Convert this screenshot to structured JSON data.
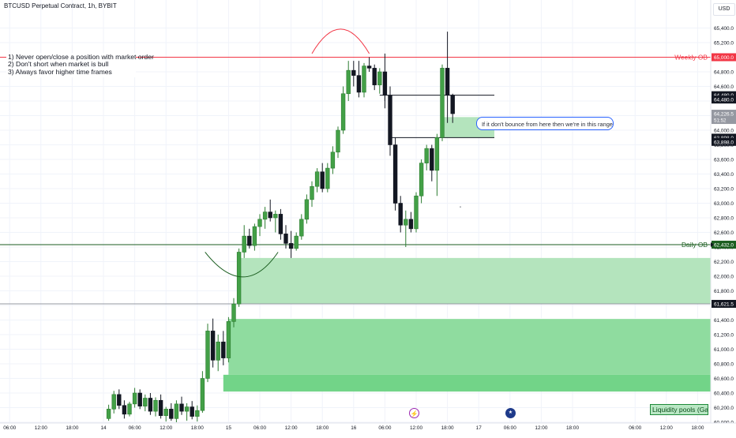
{
  "header": {
    "symbol_title": "BTCUSD Perpetual Contract, 1h, BYBIT",
    "currency": "USD"
  },
  "notes": [
    "1) Never open/close a position with market order",
    "2) Don't short when market is bull",
    "3) Always favor higher time frames"
  ],
  "callout": "If it don't bounce from here then we're in this range",
  "liquidity_label": "Liquidity pools (Gap/OB)",
  "colors": {
    "bull": "#26a69a",
    "bull_body": "#43a047",
    "bear": "#131722",
    "zone": "#4caf50",
    "weekly_line": "#f23645",
    "daily_line": "#1b5e20",
    "grid": "#f0f3fa"
  },
  "chart_data": {
    "type": "candlestick",
    "symbol": "BTCUSD",
    "exchange": "BYBIT",
    "timeframe": "1h",
    "ylim": [
      60000,
      65700
    ],
    "y_ticks": [
      60000,
      60200,
      60400,
      60600,
      60800,
      61000,
      61200,
      61400,
      61600,
      61800,
      62000,
      62200,
      62400,
      62600,
      62800,
      63000,
      63200,
      63400,
      63600,
      63800,
      64000,
      64200,
      64400,
      64600,
      64800,
      65000,
      65200,
      65400
    ],
    "y_tick_labels": [
      "60,000.0",
      "60,200.0",
      "60,400.0",
      "60,600.0",
      "60,800.0",
      "61,000.0",
      "61,200.0",
      "61,400.0",
      "61,600.0",
      "61,800.0",
      "62,000.0",
      "62,200.0",
      "62,400.0",
      "62,600.0",
      "62,800.0",
      "63,000.0",
      "63,200.0",
      "63,400.0",
      "63,600.0",
      "63,800.0",
      "64,000.0",
      "64,200.0",
      "64,400.0",
      "64,600.0",
      "64,800.0",
      "65,000.0",
      "65,200.0",
      "65,400.0"
    ],
    "x_tick_labels": [
      "06:00",
      "12:00",
      "18:00",
      "14",
      "06:00",
      "12:00",
      "18:00",
      "15",
      "06:00",
      "12:00",
      "18:00",
      "16",
      "06:00",
      "12:00",
      "18:00",
      "17",
      "06:00",
      "12:00",
      "18:00",
      "06:00",
      "12:00",
      "18:00"
    ],
    "x_ticks_hours": [
      -18,
      -12,
      -6,
      0,
      6,
      12,
      18,
      24,
      30,
      36,
      42,
      48,
      54,
      60,
      66,
      72,
      78,
      84,
      90,
      102,
      108,
      114
    ],
    "candles": [
      {
        "t": 1,
        "o": 60050,
        "h": 60240,
        "l": 60020,
        "c": 60180
      },
      {
        "t": 2,
        "o": 60180,
        "h": 60430,
        "l": 60120,
        "c": 60380
      },
      {
        "t": 3,
        "o": 60380,
        "h": 60450,
        "l": 60180,
        "c": 60230
      },
      {
        "t": 4,
        "o": 60230,
        "h": 60300,
        "l": 60050,
        "c": 60110
      },
      {
        "t": 5,
        "o": 60110,
        "h": 60280,
        "l": 60080,
        "c": 60250
      },
      {
        "t": 6,
        "o": 60250,
        "h": 60470,
        "l": 60200,
        "c": 60400
      },
      {
        "t": 7,
        "o": 60400,
        "h": 60450,
        "l": 60180,
        "c": 60220
      },
      {
        "t": 8,
        "o": 60220,
        "h": 60380,
        "l": 60150,
        "c": 60330
      },
      {
        "t": 9,
        "o": 60330,
        "h": 60400,
        "l": 60100,
        "c": 60150
      },
      {
        "t": 10,
        "o": 60150,
        "h": 60340,
        "l": 60080,
        "c": 60300
      },
      {
        "t": 11,
        "o": 60300,
        "h": 60380,
        "l": 60050,
        "c": 60090
      },
      {
        "t": 12,
        "o": 60090,
        "h": 60210,
        "l": 60010,
        "c": 60180
      },
      {
        "t": 13,
        "o": 60180,
        "h": 60260,
        "l": 60020,
        "c": 60050
      },
      {
        "t": 14,
        "o": 60050,
        "h": 60300,
        "l": 60000,
        "c": 60250
      },
      {
        "t": 15,
        "o": 60250,
        "h": 60350,
        "l": 60100,
        "c": 60150
      },
      {
        "t": 16,
        "o": 60150,
        "h": 60260,
        "l": 60020,
        "c": 60210
      },
      {
        "t": 17,
        "o": 60210,
        "h": 60290,
        "l": 60040,
        "c": 60080
      },
      {
        "t": 18,
        "o": 60080,
        "h": 60230,
        "l": 60010,
        "c": 60160
      },
      {
        "t": 19,
        "o": 60160,
        "h": 60700,
        "l": 60130,
        "c": 60600
      },
      {
        "t": 20,
        "o": 60600,
        "h": 61350,
        "l": 60550,
        "c": 61250
      },
      {
        "t": 21,
        "o": 61250,
        "h": 61420,
        "l": 60750,
        "c": 60850
      },
      {
        "t": 22,
        "o": 60850,
        "h": 61200,
        "l": 60700,
        "c": 61100
      },
      {
        "t": 23,
        "o": 61100,
        "h": 61250,
        "l": 60780,
        "c": 60880
      },
      {
        "t": 24,
        "o": 60880,
        "h": 61440,
        "l": 60820,
        "c": 61380
      },
      {
        "t": 25,
        "o": 61380,
        "h": 61700,
        "l": 61300,
        "c": 61620
      },
      {
        "t": 26,
        "o": 61620,
        "h": 62380,
        "l": 61580,
        "c": 62330
      },
      {
        "t": 27,
        "o": 62330,
        "h": 62700,
        "l": 62250,
        "c": 62550
      },
      {
        "t": 28,
        "o": 62550,
        "h": 62650,
        "l": 62380,
        "c": 62420
      },
      {
        "t": 29,
        "o": 62420,
        "h": 62720,
        "l": 62350,
        "c": 62680
      },
      {
        "t": 30,
        "o": 62680,
        "h": 62850,
        "l": 62550,
        "c": 62780
      },
      {
        "t": 31,
        "o": 62780,
        "h": 62950,
        "l": 62650,
        "c": 62880
      },
      {
        "t": 32,
        "o": 62880,
        "h": 63050,
        "l": 62750,
        "c": 62800
      },
      {
        "t": 33,
        "o": 62800,
        "h": 62900,
        "l": 62600,
        "c": 62850
      },
      {
        "t": 34,
        "o": 62850,
        "h": 62920,
        "l": 62500,
        "c": 62580
      },
      {
        "t": 35,
        "o": 62580,
        "h": 62700,
        "l": 62380,
        "c": 62450
      },
      {
        "t": 36,
        "o": 62450,
        "h": 62620,
        "l": 62250,
        "c": 62380
      },
      {
        "t": 37,
        "o": 62380,
        "h": 62600,
        "l": 62350,
        "c": 62550
      },
      {
        "t": 38,
        "o": 62550,
        "h": 62850,
        "l": 62500,
        "c": 62780
      },
      {
        "t": 39,
        "o": 62780,
        "h": 63120,
        "l": 62720,
        "c": 63050
      },
      {
        "t": 40,
        "o": 63050,
        "h": 63300,
        "l": 62950,
        "c": 63230
      },
      {
        "t": 41,
        "o": 63230,
        "h": 63480,
        "l": 63150,
        "c": 63430
      },
      {
        "t": 42,
        "o": 63430,
        "h": 63550,
        "l": 63150,
        "c": 63200
      },
      {
        "t": 43,
        "o": 63200,
        "h": 63550,
        "l": 63150,
        "c": 63480
      },
      {
        "t": 44,
        "o": 63480,
        "h": 63780,
        "l": 63400,
        "c": 63700
      },
      {
        "t": 45,
        "o": 63700,
        "h": 64050,
        "l": 63620,
        "c": 64000
      },
      {
        "t": 46,
        "o": 64000,
        "h": 64600,
        "l": 63950,
        "c": 64500
      },
      {
        "t": 47,
        "o": 64500,
        "h": 64950,
        "l": 64400,
        "c": 64820
      },
      {
        "t": 48,
        "o": 64820,
        "h": 64950,
        "l": 64600,
        "c": 64750
      },
      {
        "t": 49,
        "o": 64750,
        "h": 64950,
        "l": 64450,
        "c": 64520
      },
      {
        "t": 50,
        "o": 64520,
        "h": 64920,
        "l": 64450,
        "c": 64880
      },
      {
        "t": 51,
        "o": 64880,
        "h": 65000,
        "l": 64800,
        "c": 64850
      },
      {
        "t": 52,
        "o": 64850,
        "h": 64900,
        "l": 64550,
        "c": 64620
      },
      {
        "t": 53,
        "o": 64620,
        "h": 64850,
        "l": 64500,
        "c": 64800
      },
      {
        "t": 54,
        "o": 64800,
        "h": 65050,
        "l": 64400,
        "c": 64480
      },
      {
        "t": 55,
        "o": 64480,
        "h": 64600,
        "l": 63700,
        "c": 63800
      },
      {
        "t": 56,
        "o": 63800,
        "h": 63900,
        "l": 62900,
        "c": 63000
      },
      {
        "t": 57,
        "o": 63000,
        "h": 63100,
        "l": 62600,
        "c": 62700
      },
      {
        "t": 58,
        "o": 62700,
        "h": 62900,
        "l": 62400,
        "c": 62780
      },
      {
        "t": 59,
        "o": 62780,
        "h": 62880,
        "l": 62600,
        "c": 62650
      },
      {
        "t": 60,
        "o": 62650,
        "h": 63150,
        "l": 62600,
        "c": 63100
      },
      {
        "t": 61,
        "o": 63100,
        "h": 63600,
        "l": 63000,
        "c": 63550
      },
      {
        "t": 62,
        "o": 63550,
        "h": 63800,
        "l": 63450,
        "c": 63750
      },
      {
        "t": 63,
        "o": 63750,
        "h": 63800,
        "l": 63300,
        "c": 63450
      },
      {
        "t": 64,
        "o": 63450,
        "h": 63950,
        "l": 63100,
        "c": 63900
      },
      {
        "t": 65,
        "o": 63900,
        "h": 64900,
        "l": 63850,
        "c": 64850
      },
      {
        "t": 66,
        "o": 64850,
        "h": 65350,
        "l": 64100,
        "c": 64480
      },
      {
        "t": 67,
        "o": 64480,
        "h": 64500,
        "l": 64100,
        "c": 64226.5
      }
    ],
    "levels": [
      {
        "name": "Weekly OB",
        "value": 65000,
        "label": "65,000.0",
        "color": "#f23645"
      },
      {
        "name": "Daily OB",
        "value": 62432,
        "label": "62,432.0",
        "color": "#1b5e20"
      }
    ],
    "price_tags": [
      {
        "value": 64480,
        "label": "64,480.0",
        "style": "dark"
      },
      {
        "value": 64420,
        "label": "64,480.0",
        "style": "dark"
      },
      {
        "value": 64226.5,
        "label": "64,226.5",
        "sub": "51:52",
        "style": "grey"
      },
      {
        "value": 63898,
        "label": "63,898.0",
        "style": "dark"
      },
      {
        "value": 63840,
        "label": "63,898.0",
        "style": "dark"
      },
      {
        "value": 61621.5,
        "label": "61,621.5",
        "style": "dark"
      }
    ],
    "zones": [
      {
        "from": 61621.5,
        "to": 62250,
        "t0": 26,
        "t1": null,
        "shade": "light"
      },
      {
        "from": 60650,
        "to": 61420,
        "t0": 24,
        "t1": null,
        "shade": "mid"
      },
      {
        "from": 60420,
        "to": 60650,
        "t0": 23,
        "t1": null,
        "shade": "dark"
      },
      {
        "from": 63900,
        "to": 64180,
        "t0": 65,
        "t1": 75,
        "shade": "light"
      }
    ],
    "hlines": [
      {
        "value": 64480,
        "t0": 53,
        "t1": 75
      },
      {
        "value": 63898,
        "t0": 55,
        "t1": 75
      },
      {
        "value": 61621.5,
        "t0": -20,
        "t1": null
      },
      {
        "value": 61420,
        "t0": 24,
        "t1": null
      }
    ]
  }
}
